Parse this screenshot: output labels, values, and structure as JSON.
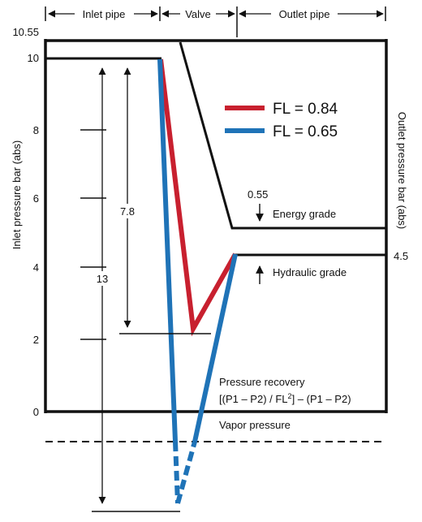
{
  "sections": {
    "inlet": "Inlet pipe",
    "valve": "Valve",
    "outlet": "Outlet pipe"
  },
  "axes": {
    "left_title": "Inlet pressure bar (abs)",
    "right_title": "Outlet pressure bar (abs)",
    "left_ticks": [
      "10.55",
      "10",
      "8",
      "6",
      "4",
      "2",
      "0"
    ],
    "right_tick": "4.5"
  },
  "legend": [
    {
      "label": "FL = 0.84",
      "color": "#c8202f"
    },
    {
      "label": "FL = 0.65",
      "color": "#1f73b7"
    }
  ],
  "annotations": {
    "energy_value": "0.55",
    "energy_grade": "Energy grade",
    "hydraulic_grade": "Hydraulic grade",
    "dim_small": "7.8",
    "dim_large": "13",
    "recovery_title": "Pressure recovery",
    "recovery_formula_a": "[(P1 – P2) / FL",
    "recovery_formula_sup": "2",
    "recovery_formula_b": "] – (P1 – P2)",
    "vapor": "Vapor pressure"
  },
  "colors": {
    "red_line": "#c8202f",
    "blue_line": "#1f73b7",
    "frame": "#111111"
  }
}
